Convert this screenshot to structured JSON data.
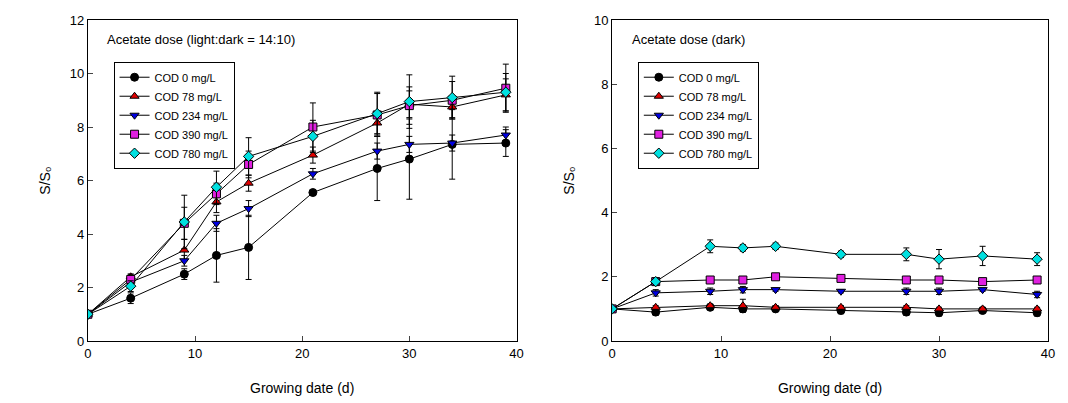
{
  "chart_data": [
    {
      "type": "line",
      "title": "Acetate dose (light:dark = 14:10)",
      "x_label": "Growing date (d)",
      "y_label": "S/S₀",
      "x": [
        0,
        4,
        9,
        12,
        15,
        21,
        27,
        30,
        34,
        39
      ],
      "xlim": [
        0,
        40
      ],
      "xticks": [
        0,
        10,
        20,
        30,
        40
      ],
      "ylim": [
        0,
        12
      ],
      "yticks": [
        0,
        2,
        4,
        6,
        8,
        10,
        12
      ],
      "grid": false,
      "legend": "upper left",
      "series": [
        {
          "name": "COD 0 mg/L",
          "color": "#000000",
          "marker": "circle",
          "values": [
            1,
            1.6,
            2.5,
            3.2,
            3.5,
            5.55,
            6.45,
            6.8,
            7.35,
            7.4
          ],
          "error": [
            0,
            0.2,
            0.2,
            1.0,
            1.2,
            0.1,
            1.2,
            1.5,
            1.3,
            0.5
          ]
        },
        {
          "name": "COD 78 mg/L",
          "color": "#e00000",
          "marker": "triangle-up",
          "values": [
            1,
            2.4,
            3.4,
            5.2,
            5.9,
            6.95,
            8.15,
            8.85,
            8.75,
            9.2
          ],
          "error": [
            0,
            0.1,
            0.4,
            0.4,
            0.3,
            0.3,
            0.4,
            0.5,
            0.4,
            0.6
          ]
        },
        {
          "name": "COD 234 mg/L",
          "color": "#0000e0",
          "marker": "triangle-down",
          "values": [
            1,
            2.2,
            3.0,
            4.4,
            4.95,
            6.25,
            7.1,
            7.35,
            7.4,
            7.7
          ],
          "error": [
            0,
            0.1,
            0.2,
            0.3,
            0.3,
            0.2,
            0.3,
            0.3,
            0.3,
            0.3
          ]
        },
        {
          "name": "COD 390 mg/L",
          "color": "#e020e0",
          "marker": "square",
          "values": [
            1,
            2.3,
            4.4,
            5.5,
            6.6,
            8.0,
            8.45,
            8.8,
            9.0,
            9.45
          ],
          "error": [
            0,
            0.2,
            0.6,
            0.4,
            0.5,
            0.9,
            0.8,
            0.7,
            0.7,
            0.9
          ]
        },
        {
          "name": "COD 780 mg/L",
          "color": "#00e0e0",
          "marker": "diamond",
          "values": [
            1,
            2.05,
            4.45,
            5.75,
            6.9,
            7.65,
            8.5,
            8.95,
            9.1,
            9.3
          ],
          "error": [
            0,
            0.2,
            1.0,
            0.6,
            0.7,
            0.6,
            0.8,
            1.0,
            0.8,
            0.7
          ]
        }
      ]
    },
    {
      "type": "line",
      "title": "Acetate dose (dark)",
      "x_label": "Growing date (d)",
      "y_label": "S/S₀",
      "x": [
        0,
        4,
        9,
        12,
        15,
        21,
        27,
        30,
        34,
        39
      ],
      "xlim": [
        0,
        40
      ],
      "xticks": [
        0,
        10,
        20,
        30,
        40
      ],
      "ylim": [
        0,
        10
      ],
      "yticks": [
        0,
        2,
        4,
        6,
        8,
        10
      ],
      "grid": false,
      "legend": "upper left",
      "series": [
        {
          "name": "COD 0 mg/L",
          "color": "#000000",
          "marker": "circle",
          "values": [
            1,
            0.9,
            1.05,
            1.0,
            1.0,
            0.95,
            0.9,
            0.88,
            0.95,
            0.88
          ],
          "error": [
            0,
            0.1,
            0.05,
            0.1,
            0.05,
            0.1,
            0.1,
            0.1,
            0.05,
            0.1
          ]
        },
        {
          "name": "COD 78 mg/L",
          "color": "#e00000",
          "marker": "triangle-up",
          "values": [
            1,
            1.05,
            1.1,
            1.1,
            1.05,
            1.05,
            1.05,
            1.0,
            1.0,
            1.0
          ],
          "error": [
            0,
            0.05,
            0.05,
            0.2,
            0.05,
            0.05,
            0.05,
            0.05,
            0.05,
            0.05
          ]
        },
        {
          "name": "COD 234 mg/L",
          "color": "#0000e0",
          "marker": "triangle-down",
          "values": [
            1,
            1.5,
            1.55,
            1.6,
            1.6,
            1.55,
            1.55,
            1.55,
            1.6,
            1.45
          ],
          "error": [
            0,
            0.1,
            0.1,
            0.1,
            0.05,
            0.05,
            0.1,
            0.1,
            0.05,
            0.1
          ]
        },
        {
          "name": "COD 390 mg/L",
          "color": "#e020e0",
          "marker": "square",
          "values": [
            1,
            1.85,
            1.9,
            1.9,
            2.0,
            1.95,
            1.9,
            1.9,
            1.85,
            1.9
          ],
          "error": [
            0,
            0.1,
            0.05,
            0.1,
            0.05,
            0.05,
            0.1,
            0.05,
            0.05,
            0.05
          ]
        },
        {
          "name": "COD 780 mg/L",
          "color": "#00e0e0",
          "marker": "diamond",
          "values": [
            1,
            1.85,
            2.95,
            2.9,
            2.95,
            2.7,
            2.7,
            2.55,
            2.65,
            2.55
          ],
          "error": [
            0,
            0.1,
            0.2,
            0.1,
            0.1,
            0.1,
            0.2,
            0.3,
            0.3,
            0.2
          ]
        }
      ]
    }
  ]
}
